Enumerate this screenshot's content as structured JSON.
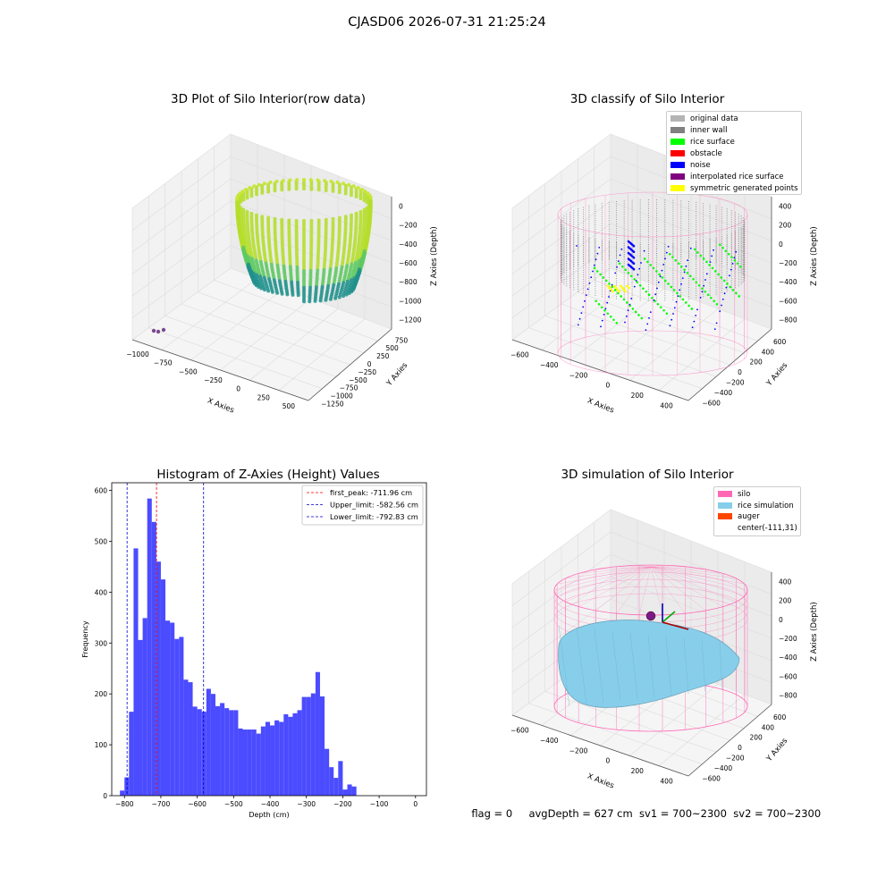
{
  "suptitle": "CJASD06 2026-07-31 21:25:24",
  "footer": {
    "flag": "flag = 0",
    "avg_depth": "avgDepth = 627 cm",
    "sv1": "sv1 = 700~2300",
    "sv2": "sv2 = 700~2300"
  },
  "colors": {
    "hist_bar": "#4b4bff",
    "first_peak_line": "#ff0000",
    "limit_line": "#0000cc",
    "original_data": "#b4b4b4",
    "inner_wall": "#808080",
    "rice_surface": "#00ff00",
    "obstacle": "#ff0000",
    "noise": "#0000ff",
    "interpolated_rice_surface": "#800080",
    "symmetric_generated_points": "#ffff00",
    "silo": "#ff69b4",
    "rice_simulation": "#87ceeb",
    "auger": "#ff4500"
  },
  "chart_data": [
    {
      "type": "scatter",
      "title": "3D Plot of Silo Interior(row data)",
      "xlabel": "X Axies",
      "ylabel": "Y Axies",
      "zlabel": "Z Axies (Depth)",
      "x_ticks": [
        "−1000",
        "−750",
        "−500",
        "−250",
        "0",
        "250",
        "500"
      ],
      "y_ticks": [
        "−1250",
        "−1000",
        "−750",
        "−500",
        "−250",
        "0",
        "250",
        "500",
        "750"
      ],
      "z_ticks": [
        "0",
        "−200",
        "−400",
        "−600",
        "−800",
        "−1000",
        "−1200"
      ],
      "colormap": "viridis"
    },
    {
      "type": "scatter",
      "title": "3D classify of Silo Interior",
      "xlabel": "X Axies",
      "ylabel": "Y Axies",
      "zlabel": "Z Axies (Depth)",
      "x_ticks": [
        "−600",
        "−400",
        "−200",
        "0",
        "200",
        "400"
      ],
      "y_ticks": [
        "−600",
        "−400",
        "−200",
        "0",
        "200",
        "400",
        "600"
      ],
      "z_ticks": [
        "400",
        "200",
        "0",
        "−200",
        "−400",
        "−600",
        "−800"
      ],
      "legend": [
        "original data",
        "inner wall",
        "rice surface",
        "obstacle",
        "noise",
        "interpolated rice surface",
        "symmetric generated points"
      ],
      "legend_position": "upper right"
    },
    {
      "type": "bar",
      "title": "Histogram of Z-Axies (Height) Values",
      "xlabel": "Depth (cm)",
      "ylabel": "Frequency",
      "xlim": [
        -835,
        30
      ],
      "ylim": [
        0,
        615
      ],
      "x_ticks": [
        -800,
        -700,
        -600,
        -500,
        -400,
        -300,
        -200,
        -100,
        0
      ],
      "y_ticks": [
        0,
        100,
        200,
        300,
        400,
        500,
        600
      ],
      "bin_width": 12.5,
      "bin_starts": [
        -812.5,
        -800,
        -787.5,
        -775,
        -762.5,
        -750,
        -737.5,
        -725,
        -712.5,
        -700,
        -687.5,
        -675,
        -662.5,
        -650,
        -637.5,
        -625,
        -612.5,
        -600,
        -587.5,
        -575,
        -562.5,
        -550,
        -537.5,
        -525,
        -512.5,
        -500,
        -487.5,
        -475,
        -462.5,
        -450,
        -437.5,
        -425,
        -412.5,
        -400,
        -387.5,
        -375,
        -362.5,
        -350,
        -337.5,
        -325,
        -312.5,
        -300,
        -287.5,
        -275,
        -262.5,
        -250,
        -237.5,
        -225,
        -212.5,
        -200,
        -187.5,
        -175,
        -162.5,
        -150,
        -137.5,
        -125,
        -112.5,
        -100,
        -87.5,
        -75,
        -62.5,
        -50,
        -37.5,
        -25,
        -12.5
      ],
      "frequencies": [
        10,
        36,
        165,
        486,
        306,
        349,
        584,
        538,
        460,
        425,
        344,
        340,
        308,
        312,
        228,
        223,
        175,
        170,
        165,
        210,
        200,
        176,
        182,
        172,
        168,
        168,
        132,
        130,
        130,
        130,
        122,
        136,
        145,
        138,
        148,
        145,
        160,
        155,
        162,
        168,
        194,
        194,
        201,
        243,
        195,
        92,
        56,
        35,
        68,
        12,
        22,
        18,
        0,
        0,
        0,
        0,
        0,
        0,
        0,
        0,
        0,
        0,
        0,
        0,
        0
      ],
      "vlines": [
        {
          "label": "first_peak: -711.96 cm",
          "x": -711.96,
          "color": "#ff0000"
        },
        {
          "label": "Upper_limit: -582.56 cm",
          "x": -582.56,
          "color": "#0000cc"
        },
        {
          "label": "Lower_limit: -792.83 cm",
          "x": -792.83,
          "color": "#0000cc"
        }
      ],
      "legend_position": "upper right"
    },
    {
      "type": "surface",
      "title": "3D simulation of Silo Interior",
      "xlabel": "X Axies",
      "ylabel": "Y Axies",
      "zlabel": "Z Axies (Depth)",
      "x_ticks": [
        "−600",
        "−400",
        "−200",
        "0",
        "200",
        "400"
      ],
      "y_ticks": [
        "−600",
        "−400",
        "−200",
        "0",
        "200",
        "400",
        "600"
      ],
      "z_ticks": [
        "400",
        "200",
        "0",
        "−200",
        "−400",
        "−600",
        "−800"
      ],
      "legend": [
        "silo",
        "rice simulation",
        "auger",
        "center(-111,31)"
      ],
      "legend_position": "upper right"
    }
  ]
}
